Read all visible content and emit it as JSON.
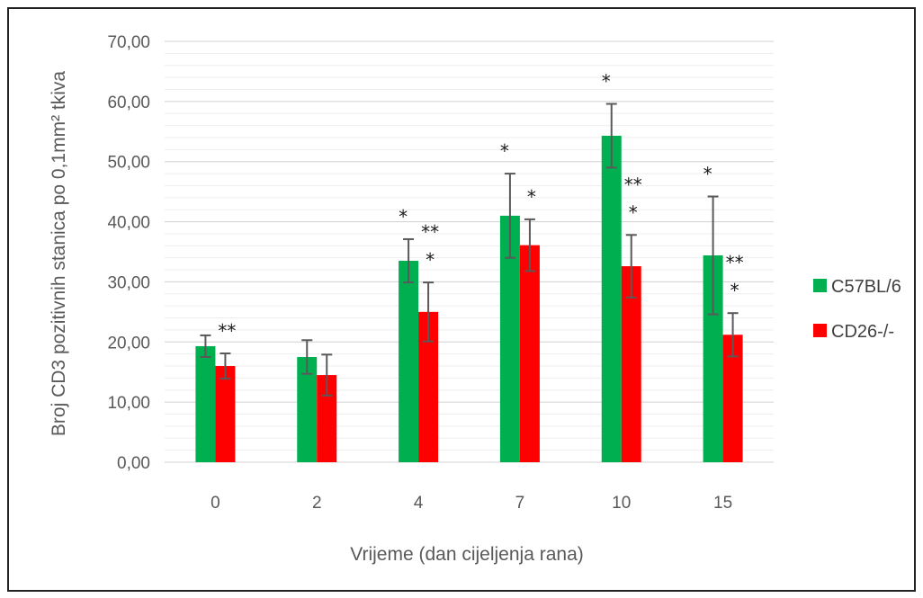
{
  "chart_data": {
    "type": "bar",
    "categories": [
      "0",
      "2",
      "4",
      "7",
      "10",
      "15"
    ],
    "series": [
      {
        "name": "C57BL/6",
        "color": "#00b050",
        "values": [
          19.3,
          17.5,
          33.5,
          41.0,
          54.3,
          34.4
        ],
        "errors": [
          1.8,
          2.8,
          3.6,
          7.0,
          5.3,
          9.8
        ]
      },
      {
        "name": "CD26-/-",
        "color": "#ff0000",
        "values": [
          16.0,
          14.5,
          25.0,
          36.1,
          32.6,
          21.2
        ],
        "errors": [
          2.1,
          3.4,
          4.9,
          4.3,
          5.2,
          3.6
        ]
      }
    ],
    "xlabel": "Vrijeme (dan cijeljenja rana)",
    "ylabel": "Broj CD3 pozitivnih stanica po 0,1mm² tkiva",
    "ylim": [
      0,
      70
    ],
    "yticks": [
      "0,00",
      "10,00",
      "20,00",
      "30,00",
      "40,00",
      "50,00",
      "60,00",
      "70,00"
    ],
    "grid": true,
    "legend_position": "right",
    "annotations": [
      {
        "category": "0",
        "series": 1,
        "lines": [
          "**"
        ]
      },
      {
        "category": "4",
        "series": 0,
        "lines": [
          "*"
        ]
      },
      {
        "category": "4",
        "series": 1,
        "lines": [
          "**",
          "*"
        ]
      },
      {
        "category": "7",
        "series": 0,
        "lines": [
          "*"
        ]
      },
      {
        "category": "7",
        "series": 1,
        "lines": [
          "*"
        ]
      },
      {
        "category": "10",
        "series": 0,
        "lines": [
          "*"
        ]
      },
      {
        "category": "10",
        "series": 1,
        "lines": [
          "**",
          "*"
        ]
      },
      {
        "category": "15",
        "series": 0,
        "lines": [
          "*"
        ]
      },
      {
        "category": "15",
        "series": 1,
        "lines": [
          "**",
          "*"
        ]
      }
    ]
  }
}
